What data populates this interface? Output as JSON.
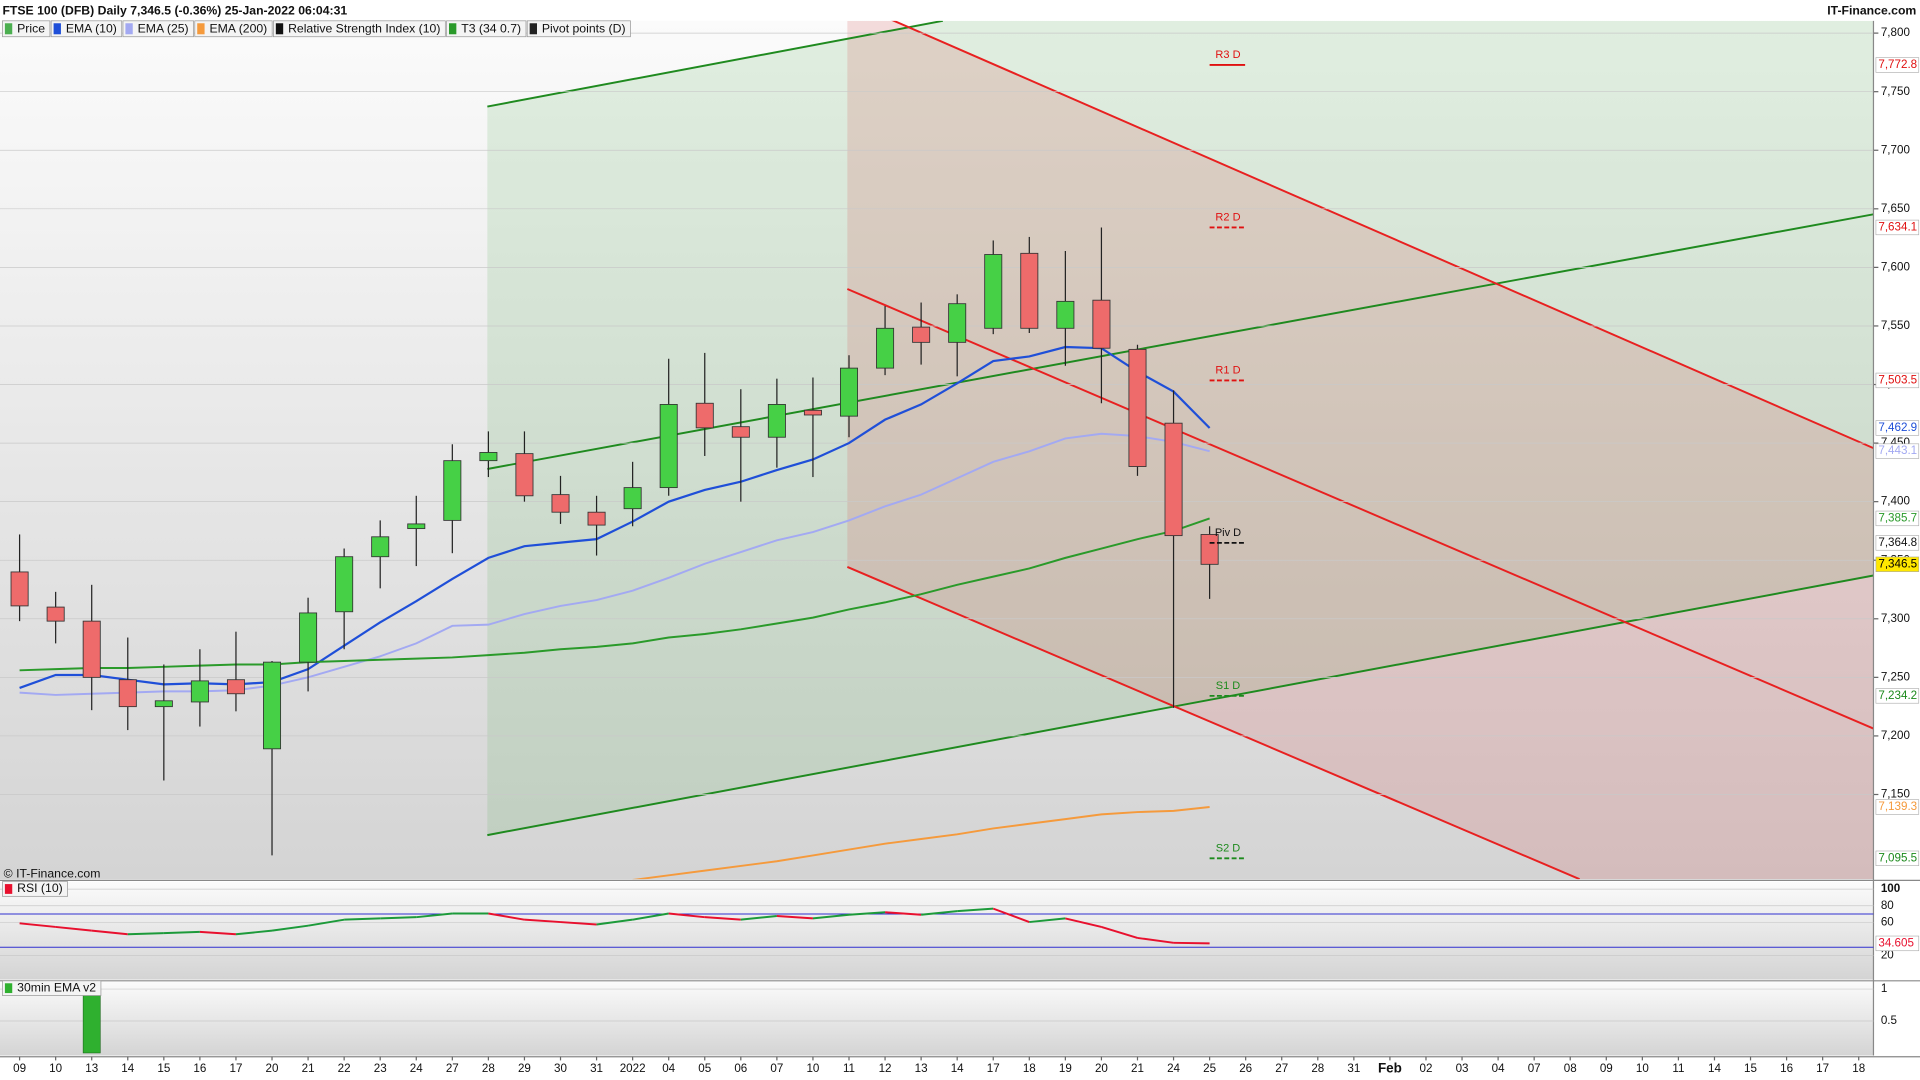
{
  "chart_data": [
    {
      "type": "candlestick",
      "title": "FTSE 100 (DFB) Daily 7,346.5 (-0.36%) 25-Jan-2022 06:04:31",
      "source": "IT-Finance.com",
      "copyright": "© IT-Finance.com",
      "price_name": "Price",
      "price_color": "#4caf50",
      "rsi_name": "Relative Strength Index (10)",
      "rsi_color": "#111111",
      "categories": [
        "09",
        "10",
        "13",
        "14",
        "15",
        "16",
        "17",
        "20",
        "21",
        "22",
        "23",
        "24",
        "27",
        "28",
        "29",
        "30",
        "31",
        "2022",
        "04",
        "05",
        "06",
        "07",
        "10",
        "11",
        "12",
        "13",
        "14",
        "17",
        "18",
        "19",
        "20",
        "21",
        "24",
        "25",
        "26",
        "27",
        "28",
        "31",
        "Feb",
        "02",
        "03",
        "04",
        "07",
        "08",
        "09",
        "10",
        "11",
        "14",
        "15",
        "16",
        "17",
        "18"
      ],
      "open": [
        7340,
        7310,
        7298,
        7248,
        7225,
        7229,
        7248,
        7189,
        7263,
        7306,
        7353,
        7377,
        7384,
        7435,
        7441,
        7406,
        7391,
        7394,
        7412,
        7484,
        7464,
        7455,
        7478,
        7473,
        7514,
        7549,
        7536,
        7548,
        7612,
        7548,
        7572,
        7530,
        7467,
        7372,
        null,
        null,
        null,
        null,
        null,
        null,
        null,
        null,
        null,
        null,
        null,
        null,
        null,
        null,
        null,
        null,
        null,
        null
      ],
      "high": [
        7372,
        7323,
        7329,
        7284,
        7261,
        7274,
        7289,
        7264,
        7318,
        7360,
        7384,
        7405,
        7449,
        7460,
        7460,
        7422,
        7405,
        7434,
        7522,
        7527,
        7496,
        7505,
        7506,
        7525,
        7567,
        7570,
        7577,
        7623,
        7626,
        7614,
        7634,
        7534,
        7495,
        7379,
        null,
        null,
        null,
        null,
        null,
        null,
        null,
        null,
        null,
        null,
        null,
        null,
        null,
        null,
        null,
        null,
        null,
        null
      ],
      "low": [
        7298,
        7279,
        7222,
        7205,
        7162,
        7208,
        7221,
        7098,
        7238,
        7274,
        7326,
        7345,
        7356,
        7421,
        7400,
        7381,
        7354,
        7379,
        7405,
        7439,
        7400,
        7429,
        7421,
        7455,
        7508,
        7517,
        7507,
        7543,
        7544,
        7516,
        7484,
        7422,
        7224,
        7317,
        null,
        null,
        null,
        null,
        null,
        null,
        null,
        null,
        null,
        null,
        null,
        null,
        null,
        null,
        null,
        null,
        null,
        null
      ],
      "close": [
        7311,
        7298,
        7250,
        7225,
        7230,
        7247,
        7236,
        7263,
        7305,
        7353,
        7370,
        7381,
        7435,
        7442,
        7405,
        7391,
        7380,
        7412,
        7483,
        7463,
        7455,
        7483,
        7474,
        7514,
        7548,
        7536,
        7569,
        7611,
        7548,
        7571,
        7531,
        7430,
        7371,
        7346.5,
        null,
        null,
        null,
        null,
        null,
        null,
        null,
        null,
        null,
        null,
        null,
        null,
        null,
        null,
        null,
        null,
        null,
        null
      ],
      "close_label": "7,346.5",
      "up_color": "#46d046",
      "down_color": "#ee6b6b",
      "series": [
        {
          "name": "EMA (10)",
          "color": "#1f4fd8",
          "last_label": "7,462.9",
          "values": [
            7241,
            7252,
            7252,
            7248,
            7244,
            7245,
            7244,
            7246,
            7257,
            7277,
            7297,
            7315,
            7334,
            7352,
            7362,
            7365,
            7368,
            7383,
            7400,
            7410,
            7417,
            7427,
            7436,
            7450,
            7470,
            7483,
            7501,
            7520,
            7524,
            7532,
            7531,
            7511,
            7494,
            7462.9,
            null,
            null,
            null,
            null,
            null,
            null,
            null,
            null,
            null,
            null,
            null,
            null,
            null,
            null,
            null,
            null,
            null,
            null
          ]
        },
        {
          "name": "EMA (25)",
          "color": "#a3a9f2",
          "last_label": "7,443.1",
          "values": [
            7237,
            7235,
            7236,
            7237,
            7238,
            7238,
            7239,
            7243,
            7250,
            7259,
            7268,
            7279,
            7294,
            7295,
            7304,
            7311,
            7316,
            7324,
            7335,
            7347,
            7357,
            7367,
            7374,
            7384,
            7396,
            7406,
            7420,
            7434,
            7443,
            7454,
            7458,
            7456,
            7451,
            7443.1,
            null,
            null,
            null,
            null,
            null,
            null,
            null,
            null,
            null,
            null,
            null,
            null,
            null,
            null,
            null,
            null,
            null,
            null
          ]
        },
        {
          "name": "EMA (200)",
          "color": "#f59a3c",
          "last_label": "7,139.3",
          "values": [
            null,
            null,
            null,
            null,
            null,
            null,
            null,
            null,
            null,
            null,
            null,
            null,
            null,
            null,
            null,
            null,
            null,
            7077,
            7081,
            7085,
            7089,
            7093,
            7098,
            7103,
            7108,
            7112,
            7116,
            7121,
            7125,
            7129,
            7133,
            7135,
            7136,
            7139.3,
            null,
            null,
            null,
            null,
            null,
            null,
            null,
            null,
            null,
            null,
            null,
            null,
            null,
            null,
            null,
            null,
            null,
            null
          ]
        },
        {
          "name": "T3 (34 0.7)",
          "color": "#2a9a2a",
          "last_label": "7,385.7",
          "values": [
            7256,
            7257,
            7258,
            7258,
            7259,
            7260,
            7261,
            7261,
            7263,
            7264,
            7265,
            7266,
            7267,
            7269,
            7271,
            7274,
            7276,
            7279,
            7284,
            7287,
            7291,
            7296,
            7301,
            7308,
            7314,
            7321,
            7329,
            7336,
            7343,
            7352,
            7360,
            7368,
            7375,
            7385.7,
            null,
            null,
            null,
            null,
            null,
            null,
            null,
            null,
            null,
            null,
            null,
            null,
            null,
            null,
            null,
            null,
            null,
            null
          ]
        }
      ],
      "pivots": {
        "name": "Pivot points (D)",
        "color": "#222222",
        "levels": [
          {
            "label": "R3 D",
            "value": 7772.8,
            "value_label": "7,772.8",
            "color": "#e01010"
          },
          {
            "label": "R2 D",
            "value": 7634.1,
            "value_label": "7,634.1",
            "color": "#e01010"
          },
          {
            "label": "R1 D",
            "value": 7503.5,
            "value_label": "7,503.5",
            "color": "#e01010"
          },
          {
            "label": "Piv D",
            "value": 7364.8,
            "value_label": "7,364.8",
            "color": "#111111"
          },
          {
            "label": "S1 D",
            "value": 7234.2,
            "value_label": "7,234.2",
            "color": "#1c8a1c"
          },
          {
            "label": "S2 D",
            "value": 7095.5,
            "value_label": "7,095.5",
            "color": "#1c8a1c"
          }
        ]
      },
      "ylim": [
        7077.7,
        7810.5
      ],
      "yticks": [
        {
          "value": 7150,
          "label": "7,150"
        },
        {
          "value": 7200,
          "label": "7,200"
        },
        {
          "value": 7250,
          "label": "7,250"
        },
        {
          "value": 7300,
          "label": "7,300"
        },
        {
          "value": 7350,
          "label": "7,350"
        },
        {
          "value": 7400,
          "label": "7,400"
        },
        {
          "value": 7450,
          "label": "7,450"
        },
        {
          "value": 7500,
          "label": "7,500"
        },
        {
          "value": 7550,
          "label": "7,550"
        },
        {
          "value": 7600,
          "label": "7,600"
        },
        {
          "value": 7650,
          "label": "7,650"
        },
        {
          "value": 7700,
          "label": "7,700"
        },
        {
          "value": 7750,
          "label": "7,750"
        },
        {
          "value": 7800,
          "label": "7,800"
        }
      ],
      "grid": true
    },
    {
      "type": "line",
      "title": "RSI (10)",
      "up_color": "#1c9a3a",
      "down_color": "#e8102e",
      "bands": [
        30,
        70
      ],
      "band_color": "#3030d0",
      "values": [
        58.8,
        54.4,
        50,
        45.6,
        47,
        48.5,
        45.6,
        50,
        55.9,
        63.2,
        64.7,
        66.2,
        70.6,
        70.6,
        63.2,
        60.3,
        57.4,
        63.2,
        70.6,
        66.2,
        63.2,
        67.6,
        64.7,
        69.1,
        72.1,
        69.1,
        73.5,
        76.5,
        60.3,
        64.7,
        54.4,
        41.2,
        35.3,
        34.605,
        null,
        null,
        null,
        null,
        null,
        null,
        null,
        null,
        null,
        null,
        null,
        null,
        null,
        null,
        null,
        null,
        null,
        null
      ],
      "ylim": [
        -9,
        109
      ],
      "yticks": [
        20,
        60,
        80,
        100
      ],
      "grid": true
    },
    {
      "type": "bar",
      "title": "30min EMA v2",
      "color": "#2fb02f",
      "values": [
        0,
        0,
        1,
        0,
        0,
        0,
        0,
        0,
        0,
        0,
        0,
        0,
        0,
        0,
        0,
        0,
        0,
        0,
        0,
        0,
        0,
        0,
        0,
        0,
        0,
        0,
        0,
        0,
        0,
        0,
        0,
        0,
        0,
        0,
        null,
        null,
        null,
        null,
        null,
        null,
        null,
        null,
        null,
        null,
        null,
        null,
        null,
        null,
        null,
        null,
        null,
        null
      ],
      "ylim": [
        -0.04,
        1.11
      ],
      "yticks": [
        0.5,
        1
      ],
      "grid": true
    }
  ]
}
